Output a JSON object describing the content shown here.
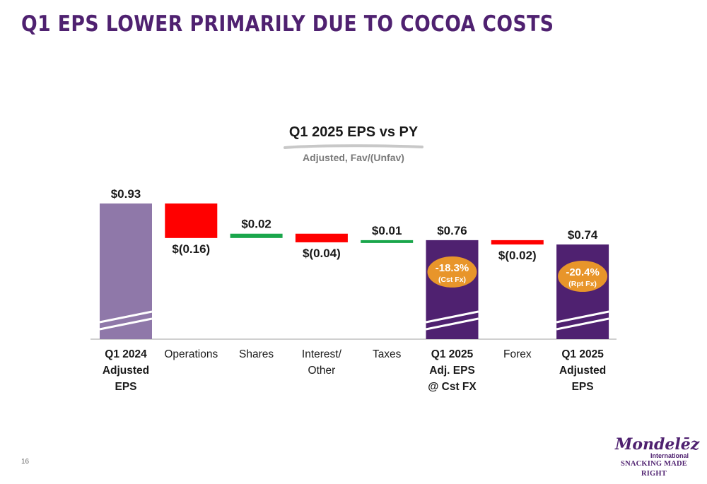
{
  "slide": {
    "title": "Q1 EPS LOWER PRIMARILY DUE TO COCOA COSTS",
    "page_number": "16"
  },
  "logo": {
    "name": "Mondelēz",
    "sub": "International",
    "tagline": "SNACKING MADE RIGHT"
  },
  "colors": {
    "brand_purple": "#4f2170",
    "start_bar": "#8f78a9",
    "total_bar": "#4f2170",
    "increase": "#1aa64b",
    "decrease": "#ff0000",
    "badge": "#e8952a"
  },
  "chart_data": {
    "type": "bar",
    "subtype": "waterfall",
    "title": "Q1 2025 EPS vs PY",
    "subtitle": "Adjusted, Fav/(Unfav)",
    "categories": [
      [
        "Q1 2024",
        "Adjusted",
        "EPS"
      ],
      [
        "Operations"
      ],
      [
        "Shares"
      ],
      [
        "Interest/",
        "Other"
      ],
      [
        "Taxes"
      ],
      [
        "Q1 2025",
        "Adj. EPS",
        "@ Cst FX"
      ],
      [
        "Forex"
      ],
      [
        "Q1 2025",
        "Adjusted",
        "EPS"
      ]
    ],
    "category_bold": [
      true,
      false,
      false,
      false,
      false,
      true,
      false,
      true
    ],
    "steps": [
      {
        "kind": "start",
        "value": 0.93,
        "label": "$0.93"
      },
      {
        "kind": "delta",
        "value": -0.16,
        "label": "$(0.16)"
      },
      {
        "kind": "delta",
        "value": 0.02,
        "label": "$0.02"
      },
      {
        "kind": "delta",
        "value": -0.04,
        "label": "$(0.04)"
      },
      {
        "kind": "delta",
        "value": 0.01,
        "label": "$0.01"
      },
      {
        "kind": "total",
        "value": 0.76,
        "label": "$0.76",
        "badge": [
          "-18.3%",
          "(Cst Fx)"
        ]
      },
      {
        "kind": "delta",
        "value": -0.02,
        "label": "$(0.02)"
      },
      {
        "kind": "total",
        "value": 0.74,
        "label": "$0.74",
        "badge": [
          "-20.4%",
          "(Rpt Fx)"
        ]
      }
    ],
    "axis_break": true,
    "grid": false,
    "legend": "none"
  }
}
